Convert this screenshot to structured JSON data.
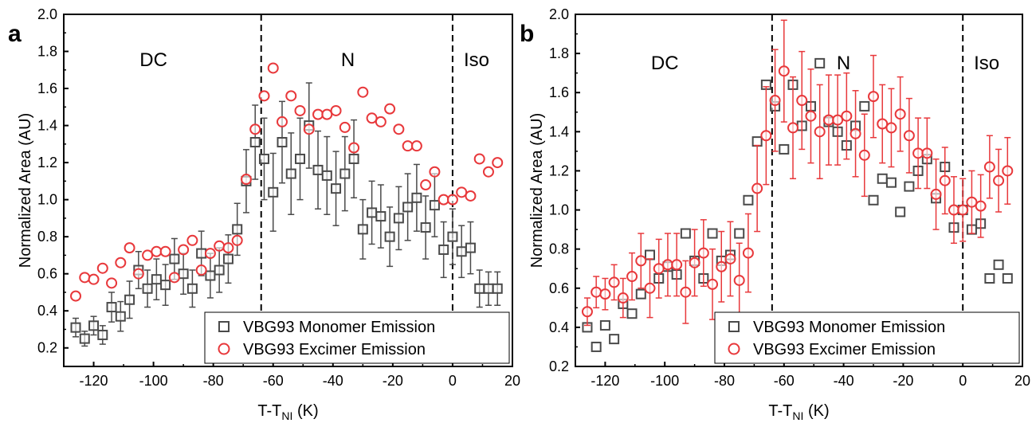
{
  "panels": [
    {
      "letter": "a",
      "xlabel_main": "T-T",
      "xlabel_sub": "NI",
      "xlabel_unit": " (K)",
      "ylabel": "Normalized Area (AU)",
      "region_labels": [
        "DC",
        "N",
        "Iso"
      ]
    },
    {
      "letter": "b",
      "xlabel_main": "T-T",
      "xlabel_sub": "NI",
      "xlabel_unit": " (K)",
      "ylabel": "Normalized Area (AU)",
      "region_labels": [
        "DC",
        "N",
        "Iso"
      ]
    }
  ],
  "colors": {
    "monomer": "#4a4a4a",
    "excimer": "#e8383b"
  },
  "chart_data": [
    {
      "type": "scatter",
      "xlim": [
        -130,
        20
      ],
      "ylim": [
        0.1,
        2.0
      ],
      "xticks": [
        -120,
        -100,
        -80,
        -60,
        -40,
        -20,
        0,
        20
      ],
      "yticks": [
        0.2,
        0.4,
        0.6,
        0.8,
        1.0,
        1.2,
        1.4,
        1.6,
        1.8,
        2.0
      ],
      "xtick_labels": [
        "-120",
        "-100",
        "-80",
        "-60",
        "-40",
        "-20",
        "0",
        "20"
      ],
      "ytick_labels": [
        "0.2",
        "0.4",
        "0.6",
        "0.8",
        "1.0",
        "1.2",
        "1.4",
        "1.6",
        "1.8",
        "2.0"
      ],
      "vlines": [
        -64,
        0
      ],
      "region_label_x": [
        -100,
        -35,
        8
      ],
      "region_label_y": 1.72,
      "legend_position": "bottom-right",
      "series": [
        {
          "name": "VBG93 Monomer Emission",
          "marker": "square",
          "x": [
            -126,
            -123,
            -120,
            -117,
            -114,
            -111,
            -108,
            -105,
            -102,
            -99,
            -96,
            -93,
            -90,
            -87,
            -84,
            -81,
            -78,
            -75,
            -72,
            -69,
            -66,
            -63,
            -60,
            -57,
            -54,
            -51,
            -48,
            -45,
            -42,
            -39,
            -36,
            -33,
            -30,
            -27,
            -24,
            -21,
            -18,
            -15,
            -12,
            -9,
            -6,
            -3,
            0,
            3,
            6,
            9,
            12,
            15
          ],
          "y": [
            0.31,
            0.25,
            0.32,
            0.27,
            0.42,
            0.37,
            0.46,
            0.62,
            0.52,
            0.57,
            0.54,
            0.68,
            0.6,
            0.52,
            0.71,
            0.59,
            0.62,
            0.68,
            0.84,
            1.1,
            1.31,
            1.22,
            1.04,
            1.31,
            1.14,
            1.22,
            1.4,
            1.16,
            1.13,
            1.06,
            1.14,
            1.22,
            0.84,
            0.93,
            0.91,
            0.8,
            0.9,
            0.96,
            1.01,
            0.85,
            0.97,
            0.73,
            0.8,
            0.72,
            0.74,
            0.52,
            0.52,
            0.52
          ],
          "err": [
            0.05,
            0.04,
            0.05,
            0.05,
            0.08,
            0.08,
            0.1,
            0.1,
            0.1,
            0.11,
            0.11,
            0.11,
            0.11,
            0.1,
            0.12,
            0.12,
            0.12,
            0.13,
            0.14,
            0.17,
            0.2,
            0.22,
            0.21,
            0.22,
            0.22,
            0.22,
            0.23,
            0.21,
            0.21,
            0.2,
            0.2,
            0.21,
            0.16,
            0.17,
            0.17,
            0.16,
            0.17,
            0.18,
            0.18,
            0.17,
            0.17,
            0.15,
            0.15,
            0.14,
            0.14,
            0.1,
            0.09,
            0.09
          ]
        },
        {
          "name": "VBG93 Excimer Emission",
          "marker": "circle",
          "x": [
            -126,
            -123,
            -120,
            -117,
            -114,
            -111,
            -108,
            -105,
            -102,
            -99,
            -96,
            -93,
            -90,
            -87,
            -84,
            -81,
            -78,
            -75,
            -72,
            -69,
            -66,
            -63,
            -60,
            -57,
            -54,
            -51,
            -48,
            -45,
            -42,
            -39,
            -36,
            -33,
            -30,
            -27,
            -24,
            -21,
            -18,
            -15,
            -12,
            -9,
            -6,
            -3,
            0,
            3,
            6,
            9,
            12,
            15
          ],
          "y": [
            0.48,
            0.58,
            0.57,
            0.63,
            0.55,
            0.66,
            0.74,
            0.6,
            0.7,
            0.72,
            0.72,
            0.58,
            0.73,
            0.78,
            0.62,
            0.71,
            0.75,
            0.74,
            0.78,
            1.11,
            1.38,
            1.56,
            1.71,
            1.42,
            1.56,
            1.48,
            1.38,
            1.46,
            1.46,
            1.48,
            1.39,
            1.28,
            1.58,
            1.44,
            1.42,
            1.49,
            1.38,
            1.29,
            1.29,
            1.08,
            1.15,
            1.0,
            1.0,
            1.04,
            1.02,
            1.22,
            1.15,
            1.2
          ]
        }
      ]
    },
    {
      "type": "scatter",
      "xlim": [
        -130,
        20
      ],
      "ylim": [
        0.2,
        2.0
      ],
      "xticks": [
        -120,
        -100,
        -80,
        -60,
        -40,
        -20,
        0,
        20
      ],
      "yticks": [
        0.2,
        0.4,
        0.6,
        0.8,
        1.0,
        1.2,
        1.4,
        1.6,
        1.8,
        2.0
      ],
      "xtick_labels": [
        "-120",
        "-100",
        "-80",
        "-60",
        "-40",
        "-20",
        "0",
        "20"
      ],
      "ytick_labels": [
        "0.2",
        "0.4",
        "0.6",
        "0.8",
        "1.0",
        "1.2",
        "1.4",
        "1.6",
        "1.8",
        "2.0"
      ],
      "vlines": [
        -64,
        0
      ],
      "region_label_x": [
        -100,
        -40,
        8
      ],
      "region_label_y": 1.72,
      "legend_position": "bottom-right",
      "series": [
        {
          "name": "VBG93 Monomer Emission",
          "marker": "square",
          "x": [
            -126,
            -123,
            -120,
            -117,
            -114,
            -111,
            -108,
            -105,
            -102,
            -99,
            -96,
            -93,
            -90,
            -87,
            -84,
            -81,
            -78,
            -75,
            -72,
            -69,
            -66,
            -63,
            -60,
            -57,
            -54,
            -51,
            -48,
            -45,
            -42,
            -39,
            -36,
            -33,
            -30,
            -27,
            -24,
            -21,
            -18,
            -15,
            -12,
            -9,
            -6,
            -3,
            0,
            3,
            6,
            9,
            12,
            15
          ],
          "y": [
            0.4,
            0.3,
            0.41,
            0.34,
            0.52,
            0.47,
            0.57,
            0.77,
            0.65,
            0.71,
            0.67,
            0.88,
            0.74,
            0.65,
            0.88,
            0.74,
            0.77,
            0.88,
            1.05,
            1.35,
            1.64,
            1.53,
            1.31,
            1.64,
            1.43,
            1.53,
            1.75,
            1.45,
            1.4,
            1.33,
            1.43,
            1.53,
            1.05,
            1.16,
            1.14,
            0.99,
            1.12,
            1.2,
            1.26,
            1.06,
            1.22,
            0.91,
            1.0,
            0.9,
            0.93,
            0.65,
            0.72,
            0.65
          ]
        },
        {
          "name": "VBG93 Excimer Emission",
          "marker": "circle",
          "x": [
            -126,
            -123,
            -120,
            -117,
            -114,
            -111,
            -108,
            -105,
            -102,
            -99,
            -96,
            -93,
            -90,
            -87,
            -84,
            -81,
            -78,
            -75,
            -72,
            -69,
            -66,
            -63,
            -60,
            -57,
            -54,
            -51,
            -48,
            -45,
            -42,
            -39,
            -36,
            -33,
            -30,
            -27,
            -24,
            -21,
            -18,
            -15,
            -12,
            -9,
            -6,
            -3,
            0,
            3,
            6,
            9,
            12,
            15
          ],
          "y": [
            0.48,
            0.58,
            0.57,
            0.63,
            0.55,
            0.66,
            0.74,
            0.6,
            0.7,
            0.72,
            0.72,
            0.58,
            0.73,
            0.78,
            0.62,
            0.71,
            0.75,
            0.64,
            0.78,
            1.11,
            1.38,
            1.56,
            1.71,
            1.42,
            1.56,
            1.48,
            1.4,
            1.46,
            1.46,
            1.48,
            1.39,
            1.28,
            1.58,
            1.44,
            1.42,
            1.49,
            1.38,
            1.29,
            1.29,
            1.08,
            1.15,
            1.0,
            1.0,
            1.04,
            1.02,
            1.22,
            1.15,
            1.2
          ],
          "err": [
            0.07,
            0.08,
            0.08,
            0.09,
            0.1,
            0.12,
            0.14,
            0.15,
            0.15,
            0.16,
            0.16,
            0.16,
            0.17,
            0.17,
            0.18,
            0.18,
            0.19,
            0.19,
            0.2,
            0.22,
            0.25,
            0.26,
            0.26,
            0.26,
            0.25,
            0.24,
            0.24,
            0.23,
            0.23,
            0.22,
            0.22,
            0.21,
            0.21,
            0.2,
            0.2,
            0.19,
            0.19,
            0.18,
            0.18,
            0.18,
            0.17,
            0.17,
            0.16,
            0.16,
            0.16,
            0.16,
            0.16,
            0.17
          ]
        }
      ]
    }
  ]
}
